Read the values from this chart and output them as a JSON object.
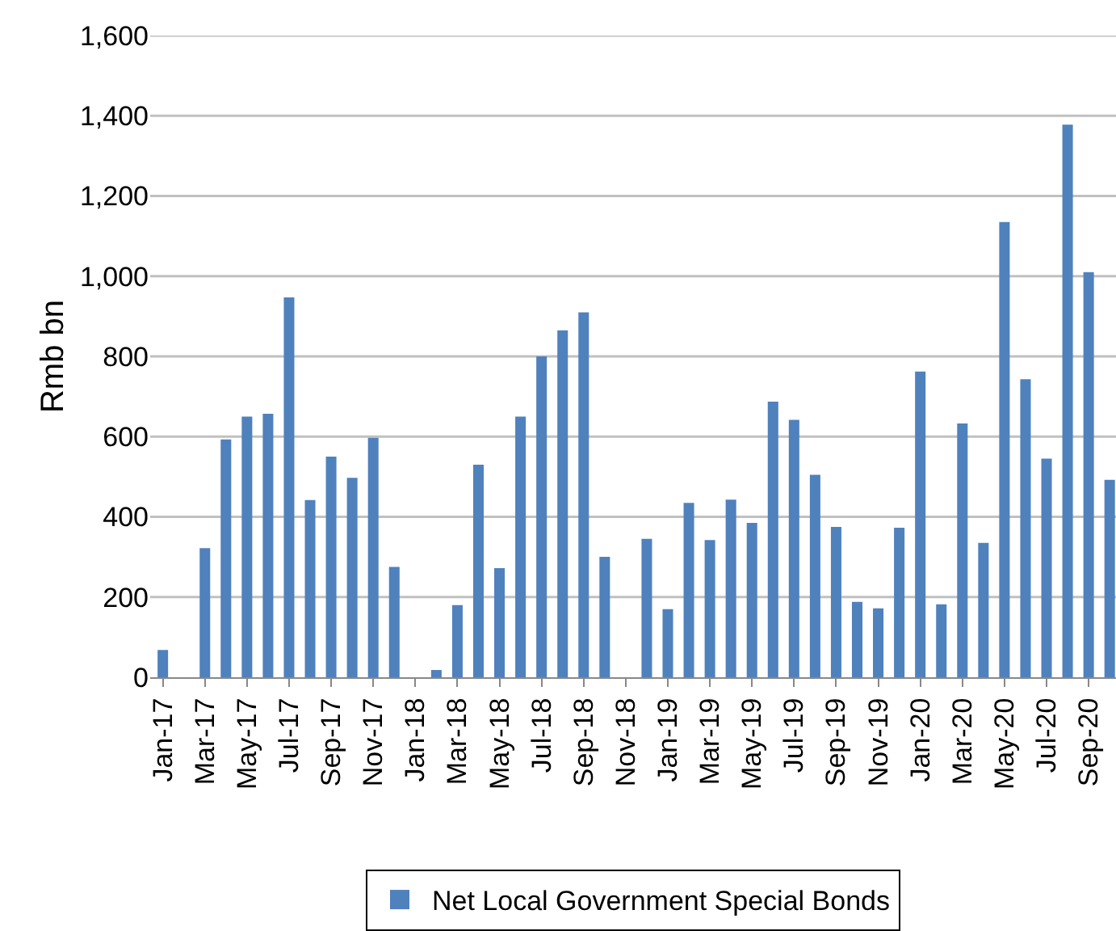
{
  "chart_data": {
    "type": "bar",
    "ylabel": "Rmb bn",
    "categories": [
      "Jan-17",
      null,
      "Mar-17",
      null,
      "May-17",
      null,
      "Jul-17",
      null,
      "Sep-17",
      null,
      "Nov-17",
      null,
      "Jan-18",
      null,
      "Mar-18",
      null,
      "May-18",
      null,
      "Jul-18",
      null,
      "Sep-18",
      null,
      "Nov-18",
      null,
      "Jan-19",
      null,
      "Mar-19",
      null,
      "May-19",
      null,
      "Jul-19",
      null,
      "Sep-19",
      null,
      "Nov-19",
      null,
      "Jan-20",
      null,
      "Mar-20",
      null,
      "May-20",
      null,
      "Jul-20",
      null,
      "Sep-20",
      null
    ],
    "series": [
      {
        "name": "Net Local Government Special Bonds",
        "color": "#4f81bd",
        "values": [
          68,
          null,
          322,
          593,
          650,
          657,
          947,
          442,
          550,
          497,
          597,
          275,
          0,
          18,
          180,
          530,
          272,
          650,
          800,
          865,
          910,
          300,
          null,
          345,
          170,
          435,
          342,
          443,
          385,
          687,
          642,
          505,
          375,
          188,
          172,
          373,
          762,
          182,
          633,
          335,
          1135,
          743,
          545,
          1378,
          1010,
          492
        ]
      }
    ],
    "ylim": [
      0,
      1600
    ],
    "yticks": [
      {
        "value": 0,
        "label": "0"
      },
      {
        "value": 200,
        "label": "200"
      },
      {
        "value": 400,
        "label": "400"
      },
      {
        "value": 600,
        "label": "600"
      },
      {
        "value": 800,
        "label": "800"
      },
      {
        "value": 1000,
        "label": "1,000"
      },
      {
        "value": 1200,
        "label": "1,200"
      },
      {
        "value": 1400,
        "label": "1,400"
      },
      {
        "value": 1600,
        "label": "1,600"
      }
    ],
    "grid": "y",
    "legend": "bottom"
  }
}
